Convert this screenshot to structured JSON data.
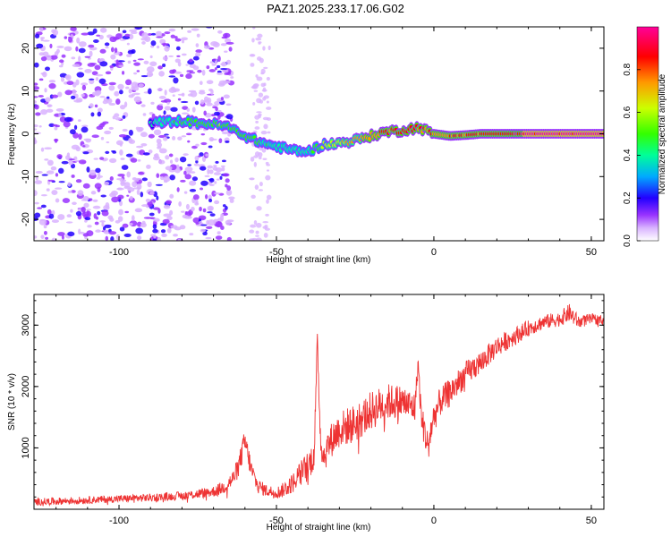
{
  "title": "PAZ1.2025.233.17.06.G02",
  "chart_data": [
    {
      "type": "heatmap",
      "xlabel": "Height of straight line (km)",
      "ylabel": "Frequency (Hz)",
      "xlim": [
        -127,
        54
      ],
      "ylim": [
        -25,
        25
      ],
      "xticks": [
        -100,
        -50,
        0,
        50
      ],
      "yticks": [
        -20,
        -10,
        0,
        10,
        20
      ],
      "colorbar": {
        "label": "Normalized spectral amplitude",
        "range": [
          0,
          1
        ],
        "ticks": [
          0.0,
          0.2,
          0.4,
          0.6,
          0.8
        ],
        "colors": [
          "#ffffff",
          "#cc99ff",
          "#8800ff",
          "#0000ff",
          "#00ccff",
          "#00ff44",
          "#ccff00",
          "#ff8800",
          "#ff0000",
          "#ff00aa"
        ]
      },
      "ridge": {
        "x": [
          -90,
          -85,
          -80,
          -75,
          -70,
          -65,
          -60,
          -55,
          -50,
          -45,
          -40,
          -35,
          -30,
          -25,
          -20,
          -15,
          -10,
          -5,
          0,
          5,
          10,
          15,
          20,
          25,
          30,
          35,
          40,
          45,
          50,
          54
        ],
        "freq": [
          2.5,
          2.8,
          3,
          2.5,
          2.3,
          1.5,
          -0.5,
          -2,
          -3,
          -3.8,
          -4.2,
          -2.5,
          -2.2,
          -1.5,
          -0.5,
          0.5,
          0.8,
          1.5,
          0,
          -0.5,
          -0.3,
          0,
          0,
          0,
          0,
          0,
          0,
          0,
          0,
          0
        ],
        "amplitude": [
          0.35,
          0.4,
          0.42,
          0.45,
          0.5,
          0.52,
          0.5,
          0.42,
          0.38,
          0.38,
          0.4,
          0.52,
          0.62,
          0.7,
          0.75,
          0.8,
          0.82,
          0.78,
          0.75,
          0.78,
          0.8,
          0.82,
          0.85,
          0.88,
          0.92,
          0.95,
          0.95,
          0.95,
          0.95,
          0.95
        ]
      },
      "noise_cutoff_x": -72
    },
    {
      "type": "line",
      "xlabel": "Height of straight line (km)",
      "ylabel": "SNR (10 * v/v)",
      "xlim": [
        -127,
        54
      ],
      "ylim": [
        0,
        3500
      ],
      "xticks": [
        -100,
        -50,
        0,
        50
      ],
      "yticks": [
        1000,
        2000,
        3000
      ],
      "color": "#ee3333",
      "series": [
        {
          "name": "SNR",
          "x": [
            -127,
            -120,
            -110,
            -100,
            -90,
            -80,
            -75,
            -70,
            -67,
            -64,
            -62,
            -60,
            -58,
            -56,
            -53,
            -50,
            -48,
            -45,
            -42,
            -40,
            -38,
            -37,
            -36,
            -35,
            -33,
            -30,
            -25,
            -20,
            -15,
            -10,
            -6,
            -5,
            -4,
            -2,
            0,
            2,
            5,
            10,
            15,
            20,
            25,
            30,
            35,
            40,
            43,
            46,
            50,
            54
          ],
          "y": [
            120,
            130,
            150,
            170,
            190,
            220,
            250,
            290,
            350,
            480,
            700,
            1100,
            650,
            380,
            300,
            270,
            310,
            420,
            600,
            700,
            900,
            2750,
            1150,
            850,
            1100,
            1300,
            1400,
            1600,
            1750,
            1750,
            1650,
            2400,
            1500,
            1050,
            1500,
            1750,
            1900,
            2200,
            2400,
            2650,
            2800,
            2950,
            3050,
            3100,
            3200,
            3050,
            3100,
            3080
          ],
          "noise_amplitude": [
            60,
            60,
            60,
            60,
            65,
            70,
            80,
            90,
            110,
            140,
            180,
            220,
            160,
            120,
            100,
            100,
            120,
            160,
            220,
            250,
            260,
            150,
            260,
            270,
            280,
            300,
            320,
            320,
            300,
            280,
            250,
            150,
            250,
            260,
            260,
            240,
            230,
            210,
            190,
            170,
            150,
            130,
            120,
            120,
            150,
            110,
            90,
            80
          ]
        }
      ]
    }
  ]
}
